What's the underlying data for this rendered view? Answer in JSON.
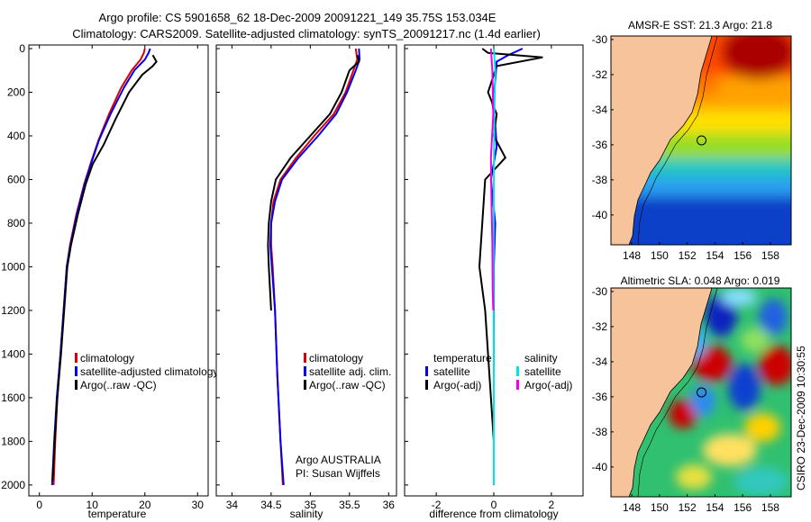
{
  "header": {
    "title_line1": "Argo profile: CS 5901658_62 18-Dec-2009 20091221_149 35.75S 153.034E",
    "title_line2": "Climatology: CARS2009. Satellite-adjusted climatology: synTS_20091217.nc (1.4d earlier)"
  },
  "footer": {
    "credit": "CSIRO 23-Dec-2009 10:30:55"
  },
  "colors": {
    "climatology": "#dd0000",
    "satellite": "#0000ee",
    "argo": "#000000",
    "cyan": "#00e5e5",
    "magenta": "#ee00ee",
    "land": "#f7c39b"
  },
  "chart_data": [
    {
      "type": "line",
      "name": "temperature-profile",
      "xlabel": "temperature",
      "ylabel": "",
      "xlim": [
        -2,
        32
      ],
      "ylim": [
        2050,
        0
      ],
      "xticks": [
        0,
        10,
        20,
        30
      ],
      "yticks": [
        0,
        200,
        400,
        600,
        800,
        1000,
        1200,
        1400,
        1600,
        1800,
        2000
      ],
      "legend": [
        "climatology",
        "satellite-adjusted climatology",
        "Argo(..raw -QC)"
      ],
      "series": [
        {
          "name": "climatology",
          "color": "#dd0000",
          "x": [
            20,
            19.8,
            19.2,
            17.5,
            15.5,
            13.2,
            11.2,
            9.8,
            8.5,
            7,
            5.8,
            5.2,
            4.6,
            4.0,
            3.4,
            3.0,
            2.7
          ],
          "y": [
            0,
            20,
            50,
            100,
            180,
            300,
            420,
            520,
            620,
            760,
            900,
            1000,
            1200,
            1400,
            1600,
            1800,
            2000
          ]
        },
        {
          "name": "satellite-adjusted climatology",
          "color": "#0000ee",
          "x": [
            21.0,
            20.7,
            20.0,
            18.0,
            16.0,
            13.5,
            11.3,
            9.9,
            8.6,
            7.1,
            5.9,
            5.2,
            4.6,
            4.0,
            3.3,
            2.8,
            2.4
          ],
          "y": [
            0,
            20,
            50,
            100,
            180,
            300,
            420,
            520,
            620,
            760,
            900,
            1000,
            1200,
            1400,
            1600,
            1800,
            2000
          ]
        },
        {
          "name": "Argo(..raw -QC)",
          "color": "#000000",
          "x": [
            21.5,
            22.2,
            21.5,
            19.5,
            17.0,
            14.5,
            12.2,
            10.1,
            8.8,
            7.3,
            6.0,
            5.3,
            4.7,
            4.1,
            3.4,
            2.9,
            2.5
          ],
          "y": [
            30,
            60,
            80,
            120,
            200,
            320,
            440,
            530,
            620,
            760,
            900,
            1000,
            1200,
            1400,
            1600,
            1800,
            1980
          ]
        }
      ]
    },
    {
      "type": "line",
      "name": "salinity-profile",
      "xlabel": "salinity",
      "ylabel": "",
      "xlim": [
        33.8,
        36.1
      ],
      "ylim": [
        2050,
        0
      ],
      "xticks": [
        34,
        34.5,
        35,
        35.5,
        36
      ],
      "legend": [
        "climatology",
        "satellite adj. clim.",
        "Argo(..raw -QC)"
      ],
      "annotation": [
        "Argo AUSTRALIA",
        "PI: Susan Wijffels"
      ],
      "series": [
        {
          "name": "climatology",
          "color": "#dd0000",
          "x": [
            35.58,
            35.6,
            35.55,
            35.45,
            35.3,
            35.05,
            34.82,
            34.62,
            34.53,
            34.5,
            34.5,
            34.52,
            34.55,
            34.58,
            34.62,
            34.65
          ],
          "y": [
            0,
            50,
            100,
            200,
            300,
            400,
            500,
            600,
            700,
            800,
            900,
            1000,
            1200,
            1500,
            1800,
            2000
          ]
        },
        {
          "name": "satellite adj. clim.",
          "color": "#0000ee",
          "x": [
            35.62,
            35.63,
            35.58,
            35.47,
            35.33,
            35.1,
            34.85,
            34.64,
            34.55,
            34.5,
            34.49,
            34.51,
            34.55,
            34.58,
            34.62,
            34.66
          ],
          "y": [
            0,
            50,
            100,
            200,
            300,
            400,
            500,
            600,
            700,
            800,
            900,
            1000,
            1200,
            1500,
            1800,
            2000
          ]
        },
        {
          "name": "Argo(..raw -QC)",
          "color": "#000000",
          "x": [
            35.6,
            35.62,
            35.5,
            35.4,
            35.25,
            35.0,
            34.75,
            34.56,
            34.5,
            34.47,
            34.46,
            34.47,
            34.5
          ],
          "y": [
            30,
            60,
            100,
            200,
            300,
            400,
            500,
            600,
            700,
            800,
            900,
            1000,
            1200
          ]
        }
      ]
    },
    {
      "type": "line",
      "name": "difference-profile",
      "xlabel": "difference from climatology",
      "ylabel": "",
      "xlim": [
        -3.1,
        3.1
      ],
      "ylim": [
        2050,
        0
      ],
      "xticks": [
        -2,
        0,
        2
      ],
      "legend_temperature": [
        "temperature",
        "satellite",
        "Argo(-adj)"
      ],
      "legend_salinity": [
        "salinity",
        "satellite",
        "Argo(-adj)"
      ],
      "series": [
        {
          "name": "temperature satellite",
          "color": "#0000ee",
          "x": [
            1.0,
            0.5,
            0.1,
            0.05,
            -0.05,
            0.05,
            0.1,
            -0.1,
            0.05,
            0.0,
            0.0,
            0.0
          ],
          "y": [
            0,
            30,
            60,
            150,
            250,
            350,
            450,
            600,
            800,
            1000,
            1500,
            2000
          ]
        },
        {
          "name": "temperature Argo(-adj)",
          "color": "#000000",
          "x": [
            -0.4,
            -0.2,
            1.7,
            0.1,
            -0.2,
            0.1,
            0.0,
            0.4,
            -0.3,
            -0.4,
            -0.5,
            -0.3,
            -0.2,
            -0.1,
            0.0,
            0.0
          ],
          "y": [
            0,
            20,
            40,
            80,
            200,
            300,
            400,
            500,
            600,
            800,
            1000,
            1200,
            1400,
            1600,
            1800,
            2000
          ]
        },
        {
          "name": "salinity satellite",
          "color": "#00e5e5",
          "x": [
            0.0,
            0.05,
            0.02,
            0.0,
            -0.01,
            0.0,
            0.0
          ],
          "y": [
            0,
            100,
            300,
            600,
            1000,
            1500,
            2000
          ]
        },
        {
          "name": "salinity Argo(-adj)",
          "color": "#ee00ee",
          "x": [
            -0.1,
            -0.05,
            -0.02,
            -0.1,
            -0.08,
            -0.05,
            -0.04,
            -0.02
          ],
          "y": [
            0,
            100,
            300,
            500,
            700,
            900,
            1100,
            1200
          ]
        }
      ]
    },
    {
      "type": "heatmap",
      "name": "sst-map",
      "title": "AMSR-E SST: 21.3 Argo: 21.8",
      "xlim": [
        146.5,
        159.5
      ],
      "ylim": [
        -41.7,
        -29.8
      ],
      "xticks": [
        148,
        150,
        152,
        154,
        156,
        158
      ],
      "yticks": [
        -30,
        -32,
        -34,
        -36,
        -38,
        -40
      ],
      "profile_location": [
        153.034,
        -35.75
      ]
    },
    {
      "type": "heatmap",
      "name": "sla-map",
      "title": "Altimetric SLA: 0.048 Argo: 0.019",
      "xlim": [
        146.5,
        159.5
      ],
      "ylim": [
        -41.7,
        -29.8
      ],
      "xticks": [
        148,
        150,
        152,
        154,
        156,
        158
      ],
      "yticks": [
        -30,
        -32,
        -34,
        -36,
        -38,
        -40
      ],
      "profile_location": [
        153.034,
        -35.75
      ]
    }
  ]
}
